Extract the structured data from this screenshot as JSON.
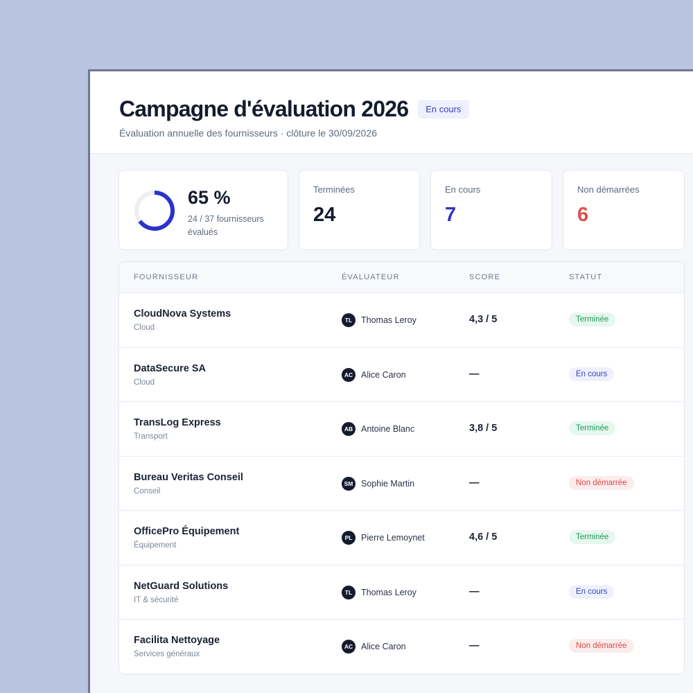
{
  "header": {
    "title": "Campagne d'évaluation 2026",
    "status": "En cours",
    "subtitle": "Évaluation annuelle des fournisseurs · clôture le 30/09/2026"
  },
  "progress": {
    "percent_label": "65 %",
    "fraction": 0.65,
    "detail": "24 / 37 fournisseurs évalués",
    "ring_color": "#2c33c9"
  },
  "stats": [
    {
      "label": "Terminées",
      "value": "24",
      "color": "#141b2d"
    },
    {
      "label": "En cours",
      "value": "7",
      "color": "#3035c4"
    },
    {
      "label": "Non démarrées",
      "value": "6",
      "color": "#e0504d"
    }
  ],
  "table": {
    "columns": [
      "FOURNISSEUR",
      "ÉVALUATEUR",
      "SCORE",
      "STATUT"
    ],
    "rows": [
      {
        "name": "CloudNova Systems",
        "category": "Cloud",
        "initials": "TL",
        "evaluator": "Thomas Leroy",
        "score": "4,3 / 5",
        "status": "Terminée",
        "status_kind": "done"
      },
      {
        "name": "DataSecure SA",
        "category": "Cloud",
        "initials": "AC",
        "evaluator": "Alice Caron",
        "score": "—",
        "status": "En cours",
        "status_kind": "progress"
      },
      {
        "name": "TransLog Express",
        "category": "Transport",
        "initials": "AB",
        "evaluator": "Antoine Blanc",
        "score": "3,8 / 5",
        "status": "Terminée",
        "status_kind": "done"
      },
      {
        "name": "Bureau Veritas Conseil",
        "category": "Conseil",
        "initials": "SM",
        "evaluator": "Sophie Martin",
        "score": "—",
        "status": "Non démarrée",
        "status_kind": "todo"
      },
      {
        "name": "OfficePro Équipement",
        "category": "Équipement",
        "initials": "PL",
        "evaluator": "Pierre Lemoynet",
        "score": "4,6 / 5",
        "status": "Terminée",
        "status_kind": "done"
      },
      {
        "name": "NetGuard Solutions",
        "category": "IT & sécurité",
        "initials": "TL",
        "evaluator": "Thomas Leroy",
        "score": "—",
        "status": "En cours",
        "status_kind": "progress"
      },
      {
        "name": "Facilita Nettoyage",
        "category": "Services généraux",
        "initials": "AC",
        "evaluator": "Alice Caron",
        "score": "—",
        "status": "Non démarrée",
        "status_kind": "todo"
      }
    ]
  }
}
